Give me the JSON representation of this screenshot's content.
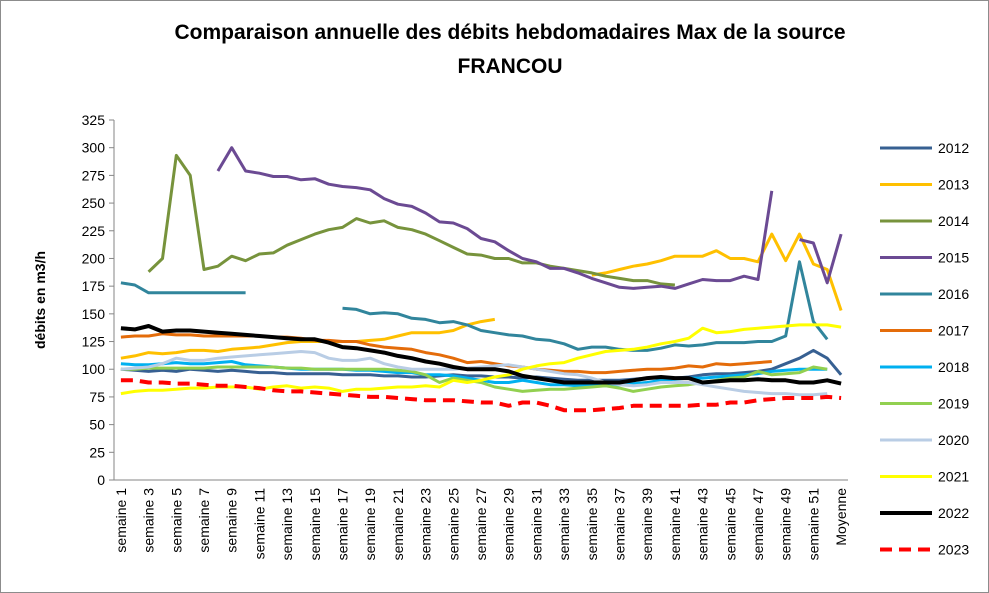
{
  "chart_data": {
    "type": "line",
    "title": "Comparaison annuelle des débits  hebdomadaires Max de la source FRANCOU",
    "y_label": "débits en m3/h",
    "categories": [
      "semaine 1",
      null,
      "semaine 3",
      null,
      "semaine 5",
      null,
      "semaine 7",
      null,
      "semaine 9",
      null,
      "semaine 11",
      null,
      "semaine 13",
      null,
      "semaine 15",
      null,
      "semaine 17",
      null,
      "semaine 19",
      null,
      "semaine 21",
      null,
      "semaine 23",
      null,
      "semaine 25",
      null,
      "semaine 27",
      null,
      "semaine 29",
      null,
      "semaine 31",
      null,
      "semaine 33",
      null,
      "semaine 35",
      null,
      "semaine 37",
      null,
      "semaine 39",
      null,
      "semaine 41",
      null,
      "semaine 43",
      null,
      "semaine 45",
      null,
      "semaine 47",
      null,
      "semaine 49",
      null,
      "semaine 51",
      null,
      "Moyenne"
    ],
    "ylim": [
      0,
      325
    ],
    "yticks": [
      0,
      25,
      50,
      75,
      100,
      125,
      150,
      175,
      200,
      225,
      250,
      275,
      300,
      325
    ],
    "grid": false,
    "legend": "right",
    "series": [
      {
        "name": "2012",
        "color": "#376092",
        "values": [
          100,
          99,
          98,
          99,
          98,
          100,
          99,
          98,
          99,
          98,
          97,
          97,
          96,
          96,
          96,
          96,
          95,
          95,
          95,
          94,
          94,
          93,
          93,
          94,
          95,
          94,
          94,
          93,
          93,
          92,
          93,
          92,
          91,
          90,
          90,
          90,
          90,
          91,
          92,
          92,
          92,
          93,
          95,
          96,
          96,
          97,
          98,
          100,
          105,
          110,
          117,
          110,
          95
        ]
      },
      {
        "name": "2013",
        "color": "#ffc000",
        "values": [
          110,
          112,
          115,
          114,
          115,
          117,
          117,
          116,
          118,
          119,
          120,
          122,
          124,
          125,
          125,
          125,
          125,
          125,
          126,
          127,
          130,
          133,
          133,
          133,
          135,
          140,
          143,
          145,
          null,
          null,
          null,
          null,
          null,
          null,
          185,
          187,
          190,
          193,
          195,
          198,
          202,
          202,
          202,
          207,
          200,
          200,
          197,
          222,
          198,
          222,
          195,
          190,
          153
        ]
      },
      {
        "name": "2014",
        "color": "#77933c",
        "values": [
          null,
          null,
          188,
          200,
          293,
          275,
          190,
          193,
          202,
          198,
          204,
          205,
          212,
          217,
          222,
          226,
          228,
          236,
          232,
          234,
          228,
          226,
          222,
          216,
          210,
          204,
          203,
          200,
          200,
          196,
          196,
          193,
          191,
          189,
          187,
          184,
          182,
          180,
          180,
          177,
          176,
          null,
          null,
          null,
          null,
          null,
          null,
          null,
          null,
          null,
          null,
          null,
          null
        ]
      },
      {
        "name": "2015",
        "color": "#6b4a93",
        "values": [
          null,
          null,
          null,
          null,
          null,
          null,
          null,
          279,
          300,
          279,
          277,
          274,
          274,
          271,
          272,
          267,
          265,
          264,
          262,
          254,
          249,
          247,
          241,
          233,
          232,
          227,
          218,
          215,
          207,
          200,
          197,
          191,
          191,
          187,
          182,
          178,
          174,
          173,
          174,
          175,
          173,
          177,
          181,
          180,
          180,
          184,
          181,
          261,
          null,
          217,
          214,
          178,
          222
        ]
      },
      {
        "name": "2016",
        "color": "#31859c",
        "values": [
          178,
          176,
          169,
          169,
          169,
          169,
          169,
          169,
          169,
          169,
          null,
          null,
          null,
          null,
          null,
          null,
          155,
          154,
          150,
          151,
          150,
          146,
          145,
          142,
          143,
          140,
          135,
          133,
          131,
          130,
          127,
          126,
          123,
          118,
          120,
          120,
          118,
          117,
          117,
          119,
          122,
          121,
          122,
          124,
          124,
          124,
          125,
          125,
          130,
          197,
          143,
          127,
          null
        ]
      },
      {
        "name": "2017",
        "color": "#e46c0a",
        "values": [
          129,
          130,
          130,
          132,
          131,
          131,
          130,
          130,
          130,
          130,
          130,
          129,
          129,
          128,
          126,
          126,
          125,
          125,
          122,
          120,
          119,
          118,
          115,
          113,
          110,
          106,
          107,
          105,
          103,
          102,
          100,
          99,
          98,
          98,
          97,
          97,
          98,
          99,
          100,
          100,
          101,
          103,
          102,
          105,
          104,
          105,
          106,
          107,
          null,
          null,
          null,
          null,
          null
        ]
      },
      {
        "name": "2018",
        "color": "#00b0f0",
        "values": [
          105,
          104,
          104,
          105,
          106,
          105,
          105,
          106,
          107,
          104,
          103,
          102,
          101,
          100,
          100,
          100,
          100,
          99,
          99,
          98,
          97,
          97,
          95,
          95,
          94,
          92,
          90,
          88,
          88,
          90,
          88,
          86,
          86,
          85,
          85,
          85,
          86,
          87,
          88,
          90,
          91,
          92,
          92,
          93,
          94,
          95,
          96,
          98,
          99,
          100,
          100,
          100,
          null
        ]
      },
      {
        "name": "2019",
        "color": "#92d050",
        "values": [
          100,
          100,
          101,
          101,
          101,
          101,
          101,
          102,
          102,
          102,
          102,
          102,
          101,
          101,
          100,
          100,
          100,
          100,
          100,
          100,
          99,
          98,
          95,
          88,
          92,
          90,
          88,
          84,
          82,
          80,
          81,
          82,
          82,
          83,
          84,
          85,
          83,
          80,
          82,
          84,
          85,
          86,
          88,
          90,
          92,
          93,
          98,
          95,
          96,
          97,
          102,
          100,
          null
        ]
      },
      {
        "name": "2020",
        "color": "#b9cde5",
        "values": [
          100,
          101,
          102,
          105,
          110,
          108,
          108,
          110,
          111,
          112,
          113,
          114,
          115,
          116,
          115,
          110,
          108,
          108,
          110,
          105,
          102,
          100,
          100,
          100,
          100,
          101,
          102,
          103,
          104,
          102,
          100,
          98,
          96,
          95,
          92,
          88,
          86,
          85,
          86,
          88,
          88,
          88,
          86,
          84,
          82,
          80,
          79,
          78,
          78,
          77,
          77,
          78,
          null
        ]
      },
      {
        "name": "2021",
        "color": "#ffff00",
        "values": [
          78,
          80,
          81,
          81,
          82,
          83,
          83,
          84,
          84,
          84,
          82,
          84,
          85,
          83,
          84,
          83,
          80,
          82,
          82,
          83,
          84,
          84,
          85,
          84,
          90,
          88,
          90,
          93,
          95,
          100,
          103,
          105,
          106,
          110,
          113,
          116,
          117,
          118,
          120,
          123,
          125,
          128,
          137,
          133,
          134,
          136,
          137,
          138,
          139,
          140,
          140,
          140,
          138
        ]
      },
      {
        "name": "2022",
        "color": "#000000",
        "values": [
          137,
          136,
          139,
          134,
          135,
          135,
          134,
          133,
          132,
          131,
          130,
          129,
          128,
          127,
          127,
          124,
          120,
          119,
          117,
          115,
          112,
          110,
          107,
          105,
          102,
          100,
          100,
          100,
          98,
          94,
          92,
          90,
          88,
          88,
          88,
          88,
          88,
          90,
          92,
          93,
          92,
          92,
          88,
          89,
          90,
          90,
          91,
          90,
          90,
          88,
          88,
          90,
          87
        ]
      },
      {
        "name": "2023",
        "color": "#ff0000",
        "line_style": "dashed",
        "values": [
          90,
          90,
          88,
          88,
          87,
          87,
          86,
          85,
          85,
          84,
          83,
          81,
          80,
          80,
          79,
          78,
          77,
          76,
          75,
          75,
          74,
          73,
          72,
          72,
          72,
          71,
          70,
          70,
          67,
          70,
          70,
          67,
          63,
          63,
          63,
          64,
          65,
          67,
          67,
          67,
          67,
          67,
          68,
          68,
          70,
          70,
          72,
          73,
          74,
          74,
          74,
          75,
          74
        ]
      }
    ]
  }
}
